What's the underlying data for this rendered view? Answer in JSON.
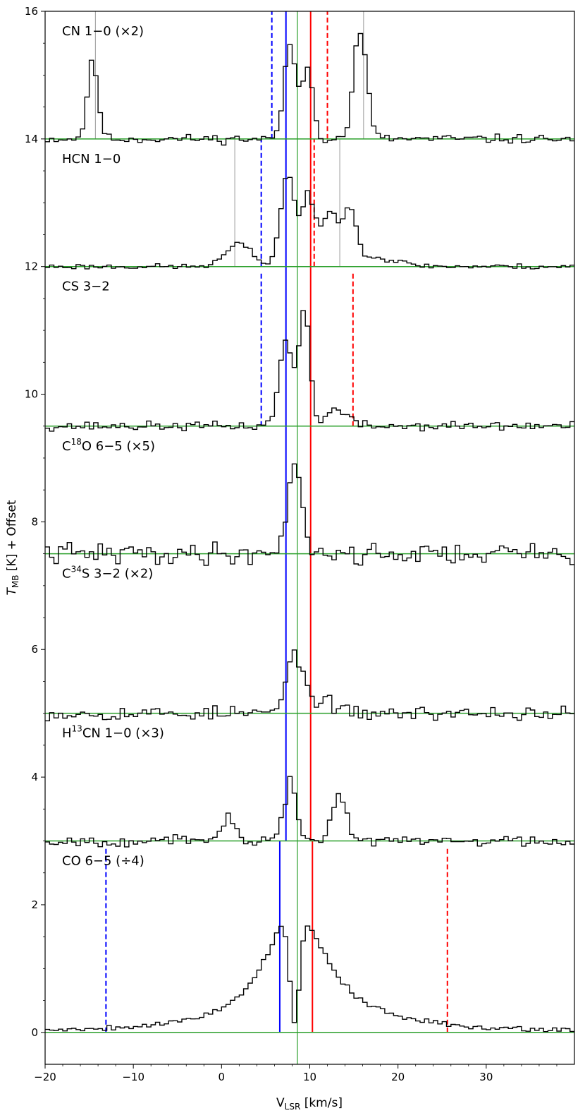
{
  "chart_data": {
    "type": "line",
    "xlabel": "V_LSR [km/s]",
    "ylabel": "T_MB [K] + Offset",
    "xlim": [
      -20,
      40
    ],
    "ylim": [
      -0.5,
      16
    ],
    "xticks": [
      -20,
      -10,
      0,
      10,
      20,
      30
    ],
    "yticks": [
      0,
      2,
      4,
      6,
      8,
      10,
      12,
      14,
      16
    ],
    "series": [
      {
        "name": "CN 1−0 (×2)",
        "offset": 14,
        "label_parts": [
          {
            "t": "CN  1−0 (×2)"
          }
        ],
        "peaks": [
          {
            "v": -14.6,
            "h": 1.2,
            "w": 0.6
          },
          {
            "v": 7.8,
            "h": 1.45,
            "w": 0.7
          },
          {
            "v": 9.8,
            "h": 1.1,
            "w": 0.6
          },
          {
            "v": 15.4,
            "h": 1.3,
            "w": 0.6
          },
          {
            "v": 16.3,
            "h": 0.8,
            "w": 0.6
          }
        ],
        "noise": 0.05,
        "seed": 11
      },
      {
        "name": "HCN 1−0",
        "offset": 12,
        "label_parts": [
          {
            "t": "HCN  1−0"
          }
        ],
        "peaks": [
          {
            "v": 2.0,
            "h": 0.35,
            "w": 1.5
          },
          {
            "v": 7.5,
            "h": 1.45,
            "w": 0.8
          },
          {
            "v": 9.8,
            "h": 1.1,
            "w": 0.7
          },
          {
            "v": 12.3,
            "h": 0.8,
            "w": 1.0
          },
          {
            "v": 14.6,
            "h": 0.8,
            "w": 0.7
          },
          {
            "v": 16.5,
            "h": 0.15,
            "w": 3.0
          }
        ],
        "noise": 0.03,
        "seed": 23
      },
      {
        "name": "CS 3−2",
        "offset": 9.5,
        "label_parts": [
          {
            "t": "CS  3−2"
          }
        ],
        "peaks": [
          {
            "v": 7.3,
            "h": 1.3,
            "w": 0.8
          },
          {
            "v": 9.4,
            "h": 1.8,
            "w": 0.6
          },
          {
            "v": 13.0,
            "h": 0.25,
            "w": 1.3
          }
        ],
        "noise": 0.05,
        "seed": 37
      },
      {
        "name": "C18O 6−5 (×5)",
        "offset": 7.5,
        "label_parts": [
          {
            "t": "C"
          },
          {
            "t": "18",
            "sup": true
          },
          {
            "t": "O  6−5 (×5)"
          }
        ],
        "peaks": [
          {
            "v": 8.3,
            "h": 1.45,
            "w": 0.8
          }
        ],
        "noise": 0.12,
        "seed": 41
      },
      {
        "name": "C34S 3−2 (×2)",
        "offset": 5,
        "label_parts": [
          {
            "t": "C"
          },
          {
            "t": "34",
            "sup": true
          },
          {
            "t": "S  3−2 (×2)"
          }
        ],
        "peaks": [
          {
            "v": 8.3,
            "h": 0.9,
            "w": 0.9
          },
          {
            "v": 11.0,
            "h": 0.2,
            "w": 1.5
          }
        ],
        "noise": 0.08,
        "seed": 53
      },
      {
        "name": "H13CN 1−0 (×3)",
        "offset": 3,
        "label_parts": [
          {
            "t": "H"
          },
          {
            "t": "13",
            "sup": true
          },
          {
            "t": "CN  1−0 (×3)"
          }
        ],
        "peaks": [
          {
            "v": 0.8,
            "h": 0.45,
            "w": 0.6
          },
          {
            "v": 7.8,
            "h": 0.9,
            "w": 0.7
          },
          {
            "v": 13.3,
            "h": 0.75,
            "w": 0.8
          }
        ],
        "noise": 0.06,
        "seed": 67
      },
      {
        "name": "CO 6−5 (÷4)",
        "offset": 0,
        "label_parts": [
          {
            "t": "CO  6−5 (÷4)"
          }
        ],
        "broad": {
          "center": 8.3,
          "h": 1.9,
          "wl": 4.2,
          "wr": 4.6
        },
        "absorb": {
          "v": 8.3,
          "h": 1.75,
          "w": 0.55
        },
        "peaks": [],
        "noise": 0.03,
        "seed": 79
      }
    ],
    "vlines": [
      {
        "x": 8.6,
        "color": "#2ca02c",
        "style": "solid",
        "y0": -0.5,
        "y1": 16,
        "width": 1.2
      },
      {
        "x": 7.3,
        "color": "#0000ff",
        "style": "solid",
        "y0": 3,
        "y1": 16,
        "width": 2
      },
      {
        "x": 10.1,
        "color": "#ff0000",
        "style": "solid",
        "y0": 3,
        "y1": 16,
        "width": 2
      },
      {
        "x": 6.6,
        "color": "#0000ff",
        "style": "solid",
        "y0": 0,
        "y1": 3,
        "width": 2
      },
      {
        "x": 10.3,
        "color": "#ff0000",
        "style": "solid",
        "y0": 0,
        "y1": 3,
        "width": 2
      },
      {
        "x": 5.7,
        "color": "#0000ff",
        "style": "dashed",
        "y0": 14,
        "y1": 16,
        "width": 2
      },
      {
        "x": 12.0,
        "color": "#ff0000",
        "style": "dashed",
        "y0": 14,
        "y1": 16,
        "width": 2
      },
      {
        "x": 4.5,
        "color": "#0000ff",
        "style": "dashed",
        "y0": 12,
        "y1": 14,
        "width": 2
      },
      {
        "x": 10.5,
        "color": "#ff0000",
        "style": "dashed",
        "y0": 12,
        "y1": 14,
        "width": 2
      },
      {
        "x": 4.5,
        "color": "#0000ff",
        "style": "dashed",
        "y0": 9.5,
        "y1": 11.9,
        "width": 2
      },
      {
        "x": 14.9,
        "color": "#ff0000",
        "style": "dashed",
        "y0": 9.5,
        "y1": 11.9,
        "width": 2
      },
      {
        "x": -13.1,
        "color": "#0000ff",
        "style": "dashed",
        "y0": 0,
        "y1": 2.9,
        "width": 2
      },
      {
        "x": 25.6,
        "color": "#ff0000",
        "style": "dashed",
        "y0": 0,
        "y1": 2.9,
        "width": 2
      },
      {
        "x": -14.3,
        "color": "#999999",
        "style": "solid",
        "y0": 14,
        "y1": 16,
        "width": 1
      },
      {
        "x": 16.1,
        "color": "#999999",
        "style": "solid",
        "y0": 14,
        "y1": 16,
        "width": 1
      },
      {
        "x": 1.5,
        "color": "#999999",
        "style": "solid",
        "y0": 12,
        "y1": 14,
        "width": 1
      },
      {
        "x": 13.4,
        "color": "#999999",
        "style": "solid",
        "y0": 12,
        "y1": 14,
        "width": 1
      }
    ],
    "baselines": [
      14,
      12,
      9.5,
      7.5,
      5,
      3,
      0
    ],
    "baseline_color": "#2ca02c",
    "grid": false,
    "legend": "none"
  }
}
